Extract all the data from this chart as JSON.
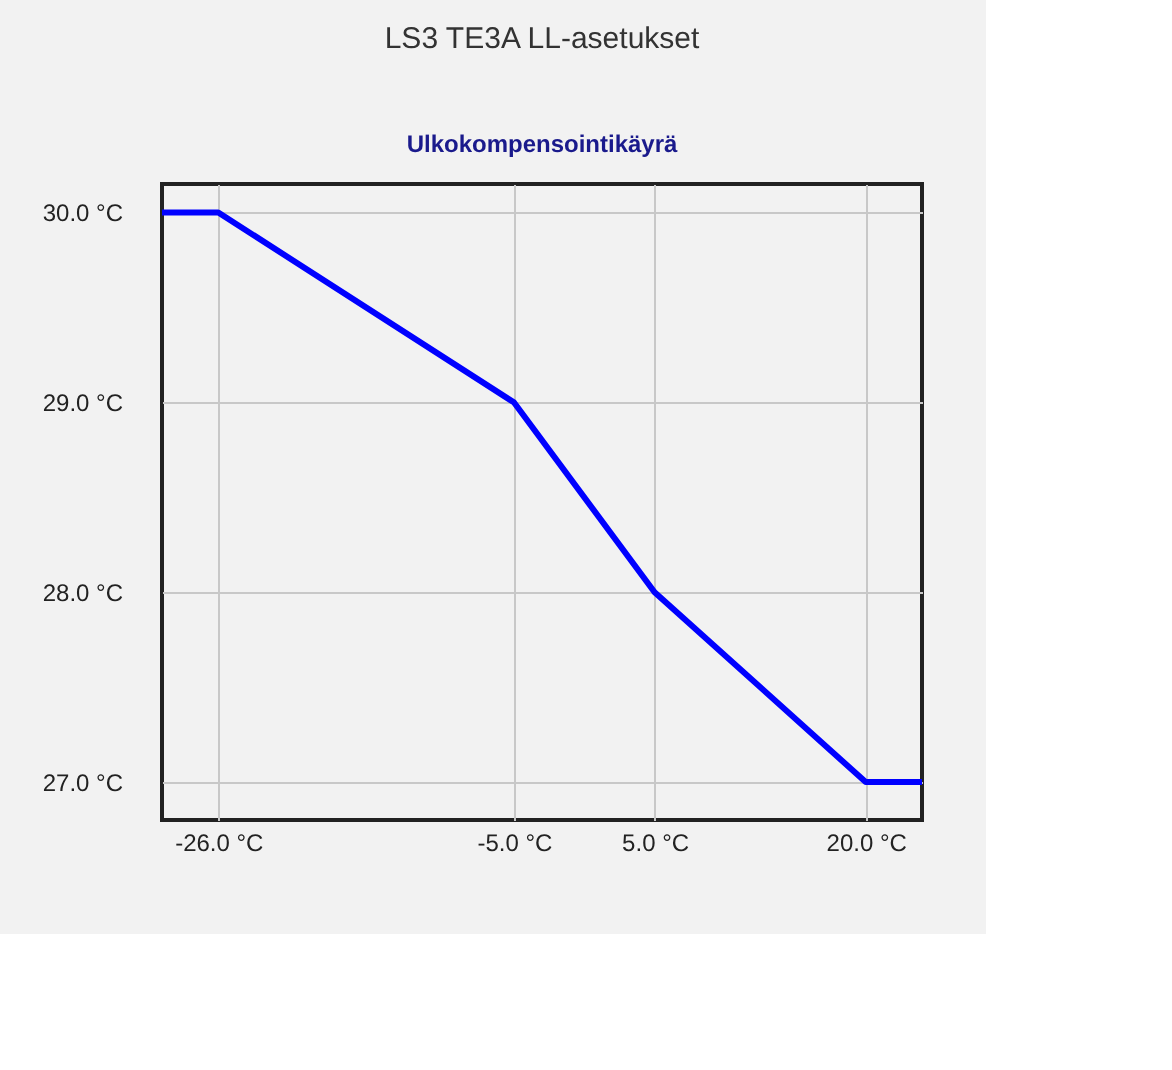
{
  "chart_data": {
    "type": "line",
    "title": "LS3 TE3A LL-asetukset",
    "subtitle": "Ulkokompensointikäyrä",
    "x": [
      -30,
      -26,
      -5,
      5,
      20,
      24
    ],
    "series": [
      {
        "color": "#0000ff",
        "values": [
          30,
          30,
          29,
          28,
          27,
          27
        ]
      }
    ],
    "xlim": [
      -30,
      24
    ],
    "xticks": [
      {
        "value": -26,
        "label": "-26.0 °C"
      },
      {
        "value": -5,
        "label": "-5.0 °C"
      },
      {
        "value": 5,
        "label": "5.0 °C"
      },
      {
        "value": 20,
        "label": "20.0 °C"
      }
    ],
    "ylim": [
      26.8,
      30.15
    ],
    "yticks": [
      {
        "value": 27,
        "label": "27.0 °C"
      },
      {
        "value": 28,
        "label": "28.0 °C"
      },
      {
        "value": 29,
        "label": "29.0 °C"
      },
      {
        "value": 30,
        "label": "30.0 °C"
      }
    ],
    "grid": true,
    "marker": "none",
    "line_style": "solid"
  }
}
